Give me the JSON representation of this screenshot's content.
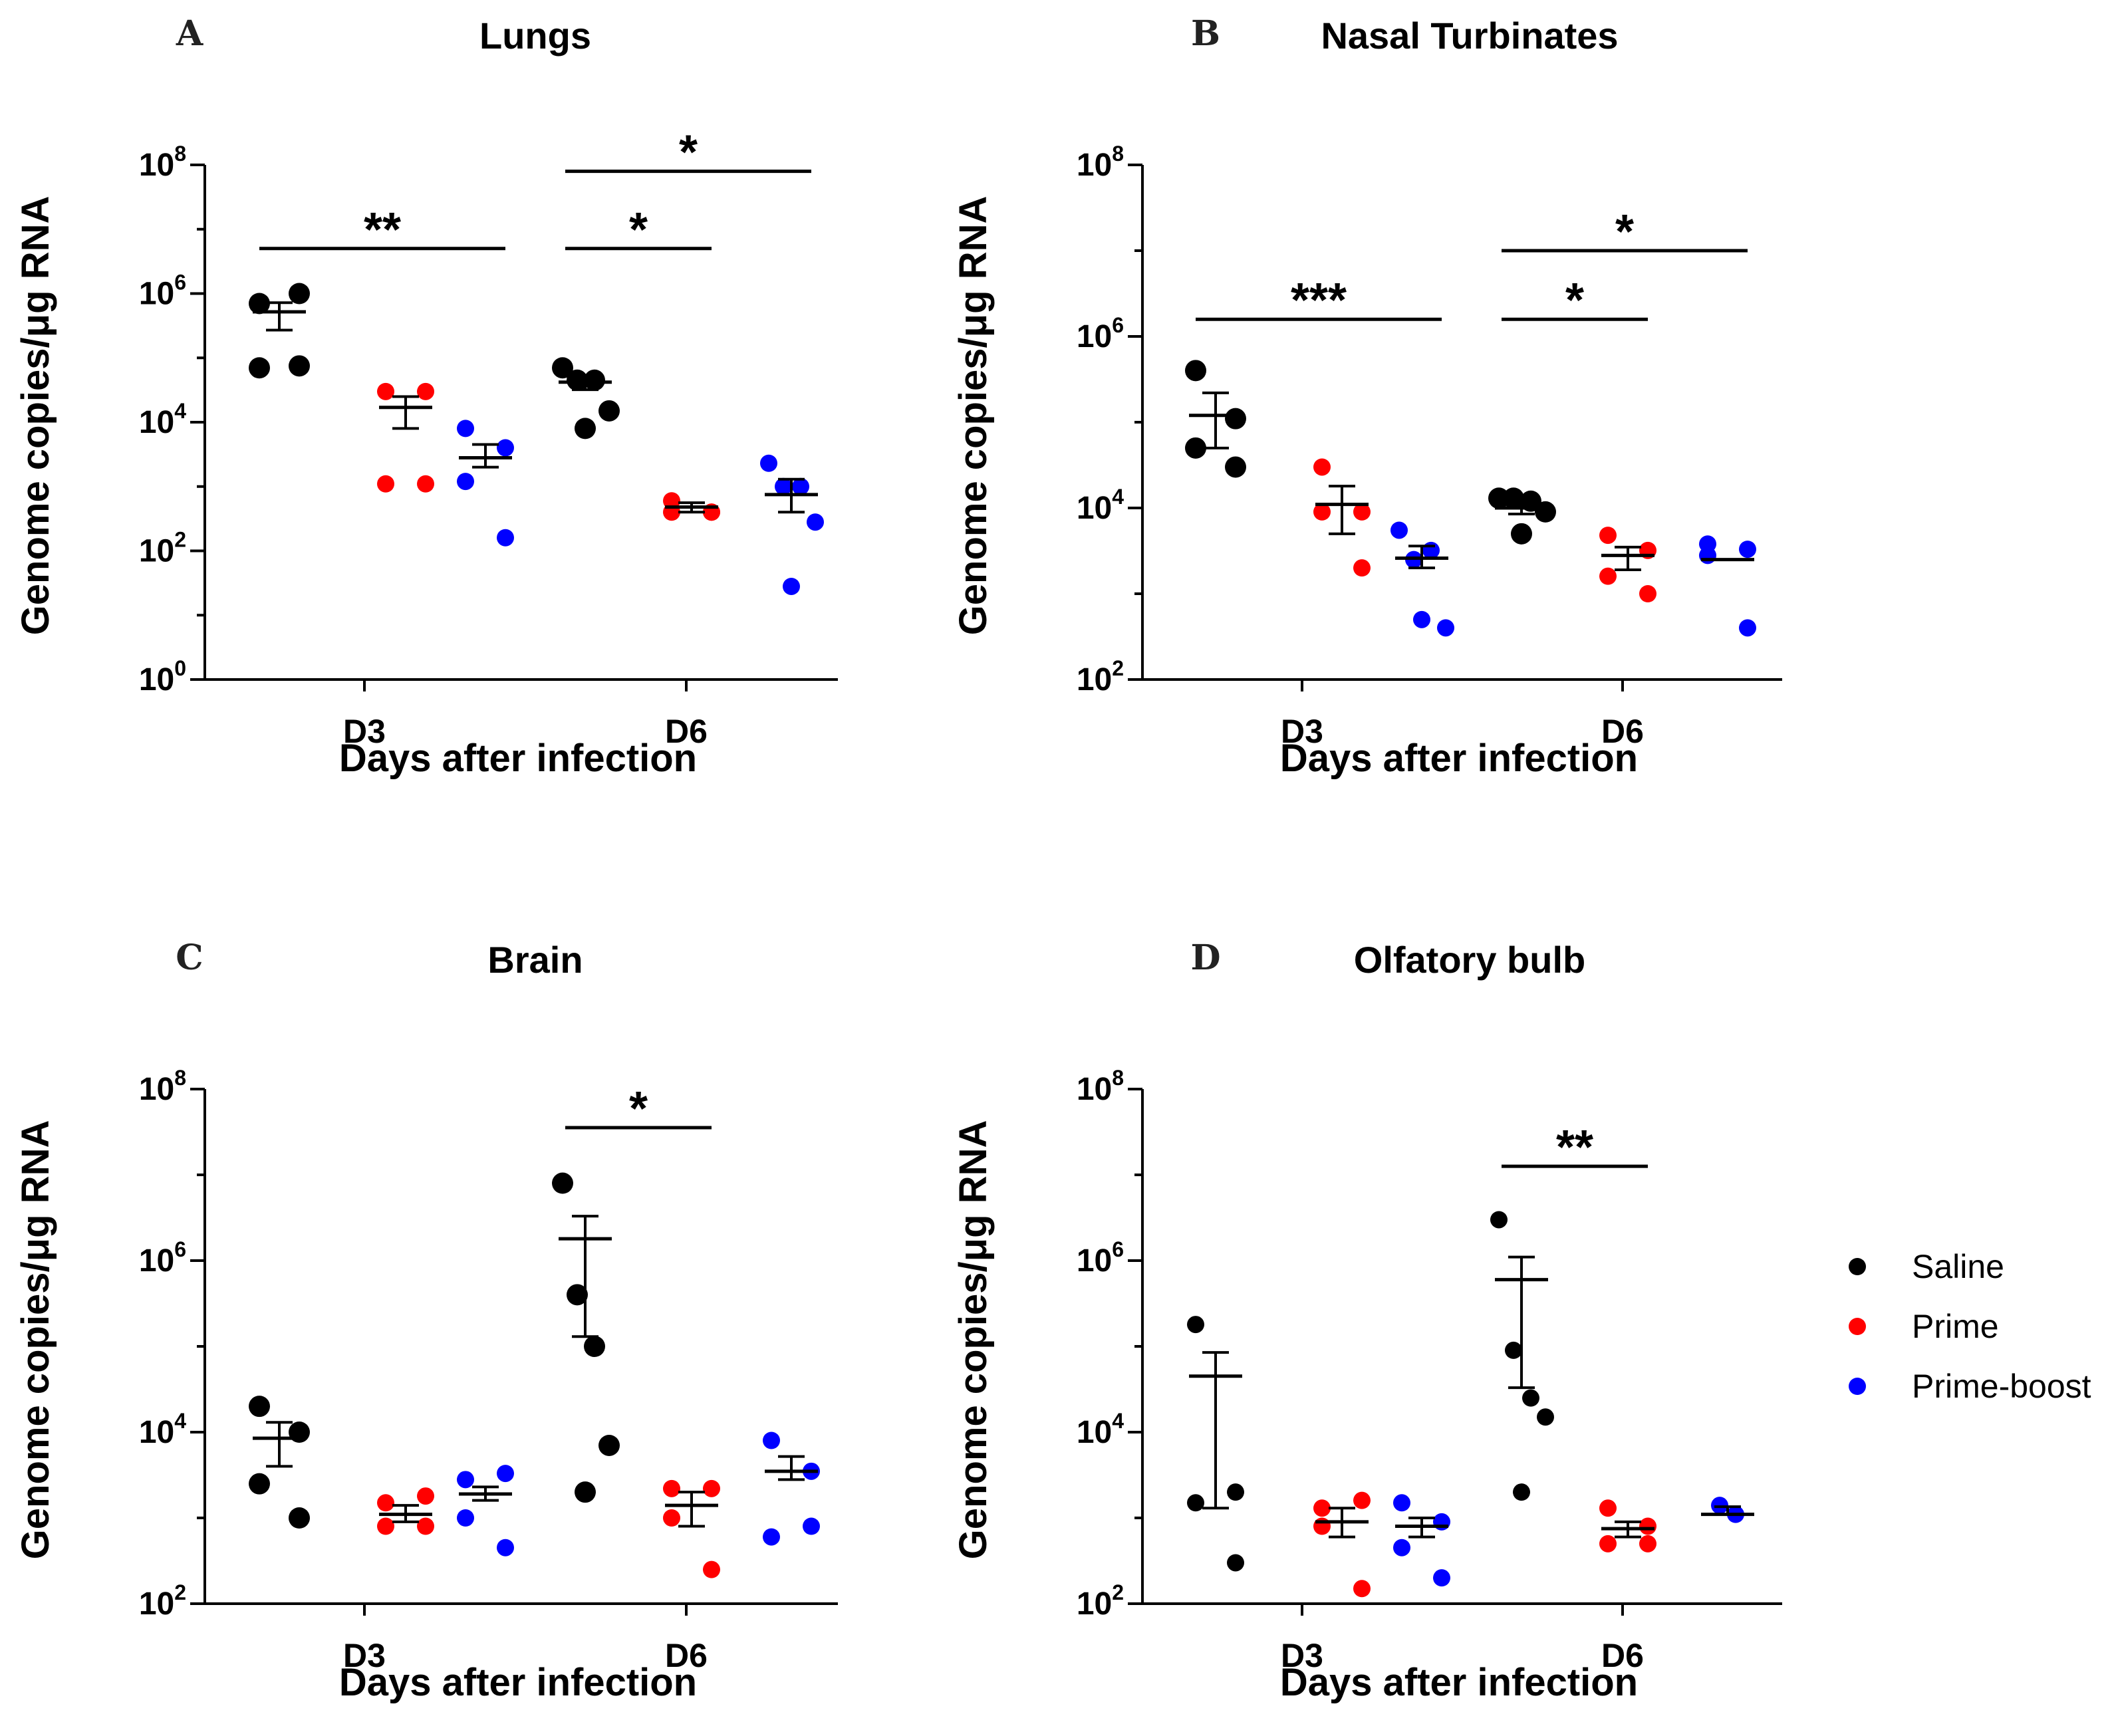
{
  "legend": {
    "items": [
      {
        "name": "Saline",
        "color": "#000000"
      },
      {
        "name": "Prime",
        "color": "#ff0000"
      },
      {
        "name": "Prime-boost",
        "color": "#0000ff"
      }
    ]
  },
  "chart_data": [
    {
      "letter": "A",
      "type": "scatter",
      "title": "Lungs",
      "xlabel": "Days after infection",
      "ylabel": "Genome copies/μg RNA",
      "yscale": "log",
      "ylim_exp": [
        0,
        8
      ],
      "yticks": [
        {
          "base": "10",
          "exp": "0"
        },
        {
          "base": "10",
          "exp": "2"
        },
        {
          "base": "10",
          "exp": "4"
        },
        {
          "base": "10",
          "exp": "6"
        },
        {
          "base": "10",
          "exp": "8"
        }
      ],
      "categories": [
        "D3",
        "D6"
      ],
      "groups": [
        {
          "day": "D3",
          "series": "Saline",
          "points": [
            700000,
            1000000,
            70000,
            75000
          ],
          "mean": 520000,
          "sem": [
            270000,
            720000
          ]
        },
        {
          "day": "D3",
          "series": "Prime",
          "points": [
            1100,
            1100,
            30000,
            30000
          ],
          "mean": 17000,
          "sem": [
            8000,
            25000
          ]
        },
        {
          "day": "D3",
          "series": "Prime-boost",
          "points": [
            8000,
            4000,
            1200,
            160
          ],
          "mean": 2800,
          "sem": [
            2000,
            4500
          ]
        },
        {
          "day": "D6",
          "series": "Saline",
          "points": [
            70000,
            45000,
            45000,
            15000,
            8000
          ],
          "mean": 42000,
          "sem": [
            32000,
            52000
          ]
        },
        {
          "day": "D6",
          "series": "Prime",
          "points": [
            600,
            400,
            400,
            400
          ],
          "mean": 480,
          "sem": [
            400,
            560
          ]
        },
        {
          "day": "D6",
          "series": "Prime-boost",
          "points": [
            2300,
            1000,
            1000,
            280,
            28
          ],
          "mean": 750,
          "sem": [
            400,
            1300
          ]
        }
      ],
      "significance": [
        {
          "label": "**",
          "from": 0,
          "to": 2,
          "y_exp": 6.7
        },
        {
          "label": "*",
          "from": 3,
          "to": 4,
          "y_exp": 6.7
        },
        {
          "label": "*",
          "from": 3,
          "to": 5,
          "y_exp": 7.9
        }
      ]
    },
    {
      "letter": "B",
      "type": "scatter",
      "title": "Nasal Turbinates",
      "xlabel": "Days after infection",
      "ylabel": "Genome copies/μg RNA",
      "yscale": "log",
      "ylim_exp": [
        2,
        8
      ],
      "yticks": [
        {
          "base": "10",
          "exp": "2"
        },
        {
          "base": "10",
          "exp": "4"
        },
        {
          "base": "10",
          "exp": "6"
        },
        {
          "base": "10",
          "exp": "8"
        }
      ],
      "categories": [
        "D3",
        "D6"
      ],
      "groups": [
        {
          "day": "D3",
          "series": "Saline",
          "points": [
            400000,
            110000,
            50000,
            30000
          ],
          "mean": 120000,
          "sem": [
            50000,
            220000
          ]
        },
        {
          "day": "D3",
          "series": "Prime",
          "points": [
            30000,
            9000,
            9000,
            2000
          ],
          "mean": 11000,
          "sem": [
            5000,
            18000
          ]
        },
        {
          "day": "D3",
          "series": "Prime-boost",
          "points": [
            5500,
            2500,
            3200,
            400,
            500
          ],
          "mean": 2600,
          "sem": [
            2000,
            3600
          ]
        },
        {
          "day": "D6",
          "series": "Saline",
          "points": [
            13000,
            13000,
            12000,
            9000,
            5000
          ],
          "mean": 10000,
          "sem": [
            8500,
            11500
          ]
        },
        {
          "day": "D6",
          "series": "Prime",
          "points": [
            4800,
            3200,
            1600,
            1000
          ],
          "mean": 2800,
          "sem": [
            1900,
            3500
          ]
        },
        {
          "day": "D6",
          "series": "Prime-boost",
          "points": [
            3800,
            3300,
            2800,
            400
          ],
          "mean": 2500,
          "sem": [
            2500,
            2500
          ]
        }
      ],
      "significance": [
        {
          "label": "***",
          "from": 0,
          "to": 2,
          "y_exp": 6.2
        },
        {
          "label": "*",
          "from": 3,
          "to": 4,
          "y_exp": 6.2
        },
        {
          "label": "*",
          "from": 3,
          "to": 5,
          "y_exp": 7.0
        }
      ]
    },
    {
      "letter": "C",
      "type": "scatter",
      "title": "Brain",
      "xlabel": "Days after infection",
      "ylabel": "Genome copies/μg RNA",
      "yscale": "log",
      "ylim_exp": [
        2,
        8
      ],
      "yticks": [
        {
          "base": "10",
          "exp": "2"
        },
        {
          "base": "10",
          "exp": "4"
        },
        {
          "base": "10",
          "exp": "6"
        },
        {
          "base": "10",
          "exp": "8"
        }
      ],
      "categories": [
        "D3",
        "D6"
      ],
      "groups": [
        {
          "day": "D3",
          "series": "Saline",
          "points": [
            20000,
            10000,
            2500,
            1000
          ],
          "mean": 8500,
          "sem": [
            4000,
            13000
          ]
        },
        {
          "day": "D3",
          "series": "Prime",
          "points": [
            1500,
            1800,
            800,
            800
          ],
          "mean": 1100,
          "sem": [
            900,
            1400
          ]
        },
        {
          "day": "D3",
          "series": "Prime-boost",
          "points": [
            2800,
            3300,
            1000,
            450
          ],
          "mean": 1900,
          "sem": [
            1600,
            2300
          ]
        },
        {
          "day": "D6",
          "series": "Saline",
          "points": [
            8000000,
            400000,
            100000,
            7000,
            2000
          ],
          "mean": 1800000,
          "sem": [
            130000,
            3300000
          ]
        },
        {
          "day": "D6",
          "series": "Prime",
          "points": [
            2200,
            2200,
            1000,
            250
          ],
          "mean": 1400,
          "sem": [
            800,
            2000
          ]
        },
        {
          "day": "D6",
          "series": "Prime-boost",
          "points": [
            8000,
            3500,
            600,
            800
          ],
          "mean": 3500,
          "sem": [
            2800,
            5200
          ]
        }
      ],
      "significance": [
        {
          "label": "*",
          "from": 3,
          "to": 4,
          "y_exp": 7.55
        }
      ]
    },
    {
      "letter": "D",
      "type": "scatter",
      "title": "Olfatory bulb",
      "xlabel": "Days after infection",
      "ylabel": "Genome copies/μg RNA",
      "yscale": "log",
      "ylim_exp": [
        2,
        8
      ],
      "yticks": [
        {
          "base": "10",
          "exp": "2"
        },
        {
          "base": "10",
          "exp": "4"
        },
        {
          "base": "10",
          "exp": "6"
        },
        {
          "base": "10",
          "exp": "8"
        }
      ],
      "categories": [
        "D3",
        "D6"
      ],
      "groups": [
        {
          "day": "D3",
          "series": "Saline",
          "points": [
            180000,
            2000,
            1500,
            300
          ],
          "mean": 45000,
          "sem": [
            1300,
            85000
          ]
        },
        {
          "day": "D3",
          "series": "Prime",
          "points": [
            1300,
            1600,
            800,
            150
          ],
          "mean": 900,
          "sem": [
            600,
            1300
          ]
        },
        {
          "day": "D3",
          "series": "Prime-boost",
          "points": [
            1500,
            900,
            450,
            200
          ],
          "mean": 800,
          "sem": [
            600,
            1000
          ]
        },
        {
          "day": "D6",
          "series": "Saline",
          "points": [
            3000000,
            90000,
            25000,
            15000,
            2000
          ],
          "mean": 600000,
          "sem": [
            33000,
            1100000
          ]
        },
        {
          "day": "D6",
          "series": "Prime",
          "points": [
            1300,
            800,
            500,
            500
          ],
          "mean": 750,
          "sem": [
            600,
            900
          ]
        },
        {
          "day": "D6",
          "series": "Prime-boost",
          "points": [
            1400,
            1100
          ],
          "mean": 1100,
          "sem": [
            1100,
            1350
          ]
        }
      ],
      "significance": [
        {
          "label": "**",
          "from": 3,
          "to": 4,
          "y_exp": 7.1
        }
      ]
    }
  ]
}
